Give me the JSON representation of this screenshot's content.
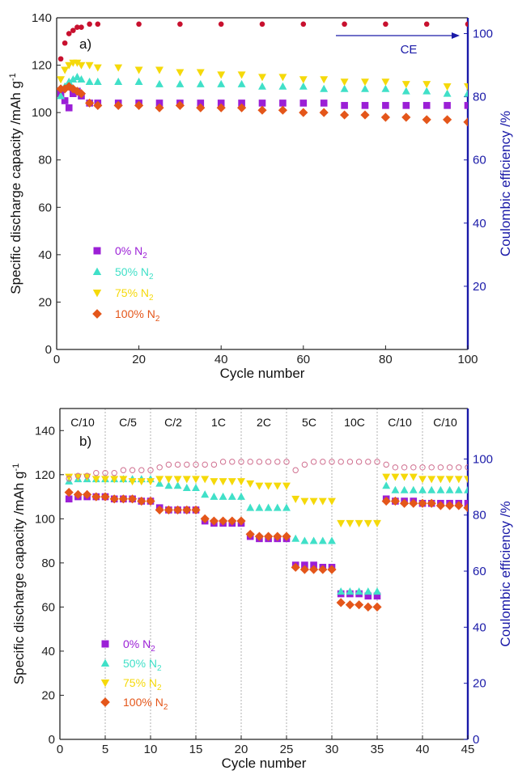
{
  "chart_data": [
    {
      "panel": "a)",
      "type": "scatter",
      "xlabel": "Cycle number",
      "ylabel": "Specific discharge capacity /mAh g",
      "ylabel_sup": "-1",
      "y2label": "Coulombic efficiency /%",
      "xlim": [
        0,
        100
      ],
      "ylim": [
        0,
        140
      ],
      "y2lim": [
        0,
        105
      ],
      "xticks": [
        "0",
        "20",
        "40",
        "60",
        "80",
        "100"
      ],
      "yticks": [
        "0",
        "20",
        "40",
        "60",
        "80",
        "100",
        "120",
        "140"
      ],
      "y2ticks": [
        "20",
        "40",
        "60",
        "80",
        "100"
      ],
      "annotation": "CE",
      "legend_position": "lower-left",
      "series": [
        {
          "name": "0% N",
          "sub": "2",
          "marker": "square",
          "color": "#9b1fd6",
          "x": [
            1,
            2,
            3,
            4,
            5,
            6,
            8,
            10,
            15,
            20,
            25,
            30,
            35,
            40,
            45,
            50,
            55,
            60,
            65,
            70,
            75,
            80,
            85,
            90,
            95,
            100
          ],
          "y": [
            108,
            105,
            102,
            108,
            109,
            107,
            104,
            104,
            104,
            104,
            104,
            104,
            104,
            104,
            104,
            104,
            104,
            104,
            104,
            103,
            103,
            103,
            103,
            103,
            103,
            103
          ]
        },
        {
          "name": "50% N",
          "sub": "2",
          "marker": "triangle-up",
          "color": "#40e0c8",
          "x": [
            1,
            2,
            3,
            4,
            5,
            6,
            8,
            10,
            15,
            20,
            25,
            30,
            35,
            40,
            45,
            50,
            55,
            60,
            65,
            70,
            75,
            80,
            85,
            90,
            95,
            100
          ],
          "y": [
            107,
            111,
            113,
            114,
            115,
            114,
            113,
            113,
            113,
            113,
            112,
            112,
            112,
            112,
            112,
            111,
            111,
            111,
            110,
            110,
            110,
            110,
            109,
            109,
            108,
            108
          ]
        },
        {
          "name": "75% N",
          "sub": "2",
          "marker": "triangle-down",
          "color": "#f5d90a",
          "x": [
            1,
            2,
            3,
            4,
            5,
            6,
            8,
            10,
            15,
            20,
            25,
            30,
            35,
            40,
            45,
            50,
            55,
            60,
            65,
            70,
            75,
            80,
            85,
            90,
            95,
            100
          ],
          "y": [
            114,
            118,
            120,
            121,
            121,
            120,
            120,
            119,
            119,
            118,
            118,
            117,
            117,
            116,
            116,
            115,
            115,
            114,
            114,
            113,
            113,
            113,
            112,
            112,
            111,
            111
          ]
        },
        {
          "name": "100% N",
          "sub": "2",
          "marker": "diamond",
          "color": "#e4561a",
          "x": [
            1,
            2,
            3,
            4,
            5,
            6,
            8,
            10,
            15,
            20,
            25,
            30,
            35,
            40,
            45,
            50,
            55,
            60,
            65,
            70,
            75,
            80,
            85,
            90,
            95,
            100
          ],
          "y": [
            110,
            110,
            111,
            110,
            109,
            108,
            104,
            103,
            103,
            103,
            102,
            103,
            102,
            102,
            102,
            101,
            101,
            100,
            100,
            99,
            99,
            98,
            98,
            97,
            97,
            96
          ]
        },
        {
          "name": "CE",
          "axis": "right",
          "marker": "circle",
          "color": "#c8102e",
          "x": [
            1,
            2,
            3,
            4,
            5,
            6,
            8,
            10,
            20,
            30,
            40,
            50,
            60,
            70,
            80,
            90,
            100
          ],
          "y": [
            92,
            97,
            100,
            101,
            102,
            102,
            103,
            103,
            103,
            103,
            103,
            103,
            103,
            103,
            103,
            103,
            103
          ]
        }
      ]
    },
    {
      "panel": "b)",
      "type": "scatter",
      "xlabel": "Cycle number",
      "ylabel": "Specific discharge capacity /mAh g",
      "ylabel_sup": "-1",
      "y2label": "Coulombic efficiency /%",
      "xlim": [
        0,
        45
      ],
      "ylim": [
        0,
        150
      ],
      "y2lim": [
        0,
        118
      ],
      "xticks": [
        "0",
        "5",
        "10",
        "15",
        "20",
        "25",
        "30",
        "35",
        "40",
        "45"
      ],
      "yticks": [
        "0",
        "20",
        "40",
        "60",
        "80",
        "100",
        "120",
        "140"
      ],
      "y2ticks": [
        "0",
        "20",
        "40",
        "60",
        "80",
        "100"
      ],
      "rates": [
        "C/10",
        "C/5",
        "C/2",
        "1C",
        "2C",
        "5C",
        "10C",
        "C/10",
        "C/10"
      ],
      "legend_position": "lower-left",
      "series": [
        {
          "name": "0% N",
          "sub": "2",
          "marker": "square",
          "color": "#9b1fd6",
          "x": [
            1,
            2,
            3,
            4,
            5,
            6,
            7,
            8,
            9,
            10,
            11,
            12,
            13,
            14,
            15,
            16,
            17,
            18,
            19,
            20,
            21,
            22,
            23,
            24,
            25,
            26,
            27,
            28,
            29,
            30,
            31,
            32,
            33,
            34,
            35,
            36,
            37,
            38,
            39,
            40,
            41,
            42,
            43,
            44,
            45
          ],
          "y": [
            109,
            110,
            110,
            110,
            110,
            109,
            109,
            109,
            108,
            108,
            105,
            104,
            104,
            104,
            104,
            99,
            98,
            98,
            98,
            98,
            92,
            91,
            91,
            91,
            91,
            79,
            79,
            79,
            78,
            78,
            66,
            66,
            66,
            65,
            65,
            109,
            108,
            108,
            108,
            107,
            107,
            107,
            107,
            107,
            107
          ]
        },
        {
          "name": "50% N",
          "sub": "2",
          "marker": "triangle-up",
          "color": "#40e0c8",
          "x": [
            1,
            2,
            3,
            4,
            5,
            6,
            7,
            8,
            9,
            10,
            11,
            12,
            13,
            14,
            15,
            16,
            17,
            18,
            19,
            20,
            21,
            22,
            23,
            24,
            25,
            26,
            27,
            28,
            29,
            30,
            31,
            32,
            33,
            34,
            35,
            36,
            37,
            38,
            39,
            40,
            41,
            42,
            43,
            44,
            45
          ],
          "y": [
            117,
            118,
            118,
            118,
            118,
            118,
            118,
            118,
            118,
            118,
            116,
            115,
            115,
            114,
            114,
            111,
            110,
            110,
            110,
            110,
            105,
            105,
            105,
            105,
            105,
            91,
            90,
            90,
            90,
            90,
            67,
            67,
            67,
            67,
            67,
            115,
            113,
            113,
            113,
            113,
            113,
            113,
            113,
            113,
            113
          ]
        },
        {
          "name": "75% N",
          "sub": "2",
          "marker": "triangle-down",
          "color": "#f5d90a",
          "x": [
            1,
            2,
            3,
            4,
            5,
            6,
            7,
            8,
            9,
            10,
            11,
            12,
            13,
            14,
            15,
            16,
            17,
            18,
            19,
            20,
            21,
            22,
            23,
            24,
            25,
            26,
            27,
            28,
            29,
            30,
            31,
            32,
            33,
            34,
            35,
            36,
            37,
            38,
            39,
            40,
            41,
            42,
            43,
            44,
            45
          ],
          "y": [
            119,
            119,
            119,
            118,
            118,
            118,
            118,
            117,
            117,
            117,
            118,
            118,
            118,
            118,
            118,
            118,
            117,
            117,
            117,
            117,
            116,
            115,
            115,
            115,
            115,
            109,
            108,
            108,
            108,
            108,
            98,
            98,
            98,
            98,
            98,
            119,
            119,
            119,
            119,
            118,
            118,
            118,
            118,
            118,
            118
          ]
        },
        {
          "name": "100% N",
          "sub": "2",
          "marker": "diamond",
          "color": "#e4561a",
          "x": [
            1,
            2,
            3,
            4,
            5,
            6,
            7,
            8,
            9,
            10,
            11,
            12,
            13,
            14,
            15,
            16,
            17,
            18,
            19,
            20,
            21,
            22,
            23,
            24,
            25,
            26,
            27,
            28,
            29,
            30,
            31,
            32,
            33,
            34,
            35,
            36,
            37,
            38,
            39,
            40,
            41,
            42,
            43,
            44,
            45
          ],
          "y": [
            112,
            111,
            111,
            110,
            110,
            109,
            109,
            109,
            108,
            108,
            104,
            104,
            104,
            104,
            104,
            100,
            99,
            99,
            99,
            99,
            93,
            92,
            92,
            92,
            92,
            78,
            77,
            77,
            77,
            77,
            62,
            61,
            61,
            60,
            60,
            108,
            108,
            107,
            107,
            107,
            107,
            106,
            106,
            106,
            105
          ]
        },
        {
          "name": "CE",
          "axis": "right",
          "marker": "open-circle",
          "color": "#d07090",
          "x": [
            1,
            2,
            3,
            4,
            5,
            6,
            7,
            8,
            9,
            10,
            11,
            12,
            13,
            14,
            15,
            16,
            17,
            18,
            19,
            20,
            21,
            22,
            23,
            24,
            25,
            26,
            27,
            28,
            29,
            30,
            31,
            32,
            33,
            34,
            35,
            36,
            37,
            38,
            39,
            40,
            41,
            42,
            43,
            44,
            45
          ],
          "y": [
            93,
            94,
            94,
            95,
            95,
            95,
            96,
            96,
            96,
            96,
            97,
            98,
            98,
            98,
            98,
            98,
            98,
            99,
            99,
            99,
            99,
            99,
            99,
            99,
            99,
            96,
            98,
            99,
            99,
            99,
            99,
            99,
            99,
            99,
            99,
            98,
            97,
            97,
            97,
            97,
            97,
            97,
            97,
            97,
            97
          ]
        }
      ]
    }
  ]
}
